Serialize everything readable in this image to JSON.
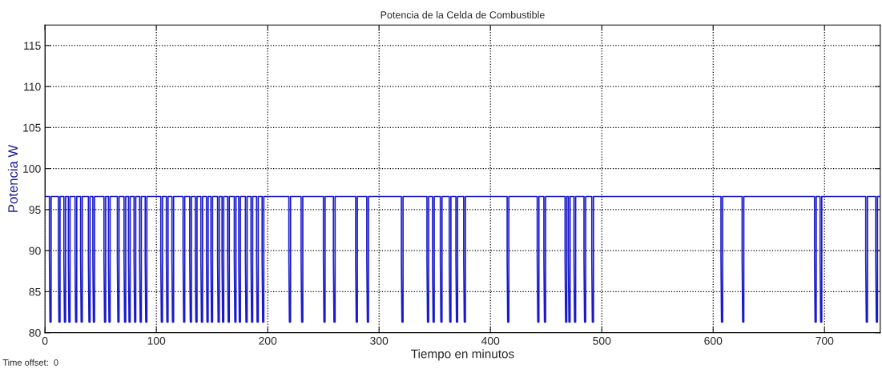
{
  "chart_data": {
    "type": "line",
    "title": "Potencia de la Celda de Combustible",
    "xlabel": "Tiempo en minutos",
    "ylabel": "Potencia W",
    "annotations": [
      "Time offset:  0"
    ],
    "xlim": [
      0,
      750
    ],
    "ylim": [
      80,
      117.5
    ],
    "xticks": [
      0,
      100,
      200,
      300,
      400,
      500,
      600,
      700
    ],
    "yticks": [
      80,
      85,
      90,
      95,
      100,
      105,
      110,
      115
    ],
    "grid": true,
    "marker": "none",
    "line_style": "solid",
    "series": [
      {
        "color": "#1a1acc",
        "x": [
          0,
          0,
          4,
          4,
          4.5,
          5.5,
          5.5,
          12,
          12,
          12.5,
          13.5,
          13.5,
          17,
          17,
          17.5,
          18.5,
          18.5,
          21,
          21,
          21.5,
          22.5,
          22.5,
          27,
          27,
          27.5,
          28.5,
          28.5,
          32,
          32,
          32.5,
          33.5,
          33.5,
          39,
          39,
          39.5,
          40.5,
          40.5,
          43,
          43,
          43.5,
          44.5,
          44.5,
          53,
          53,
          53.5,
          54.5,
          54.5,
          57,
          57,
          57.5,
          58.5,
          58.5,
          65,
          65,
          65.5,
          66.5,
          66.5,
          71,
          71,
          71.5,
          72.5,
          72.5,
          75,
          75,
          75.5,
          76.5,
          76.5,
          80,
          80,
          80.5,
          81.5,
          81.5,
          85,
          85,
          85.5,
          86.5,
          86.5,
          90,
          90,
          90.5,
          91.5,
          91.5,
          104,
          104,
          104.5,
          105.5,
          105.5,
          109,
          109,
          109.5,
          110.5,
          110.5,
          114,
          114,
          114.5,
          115.5,
          115.5,
          124,
          124,
          124.5,
          125.5,
          125.5,
          130,
          130,
          130.5,
          131.5,
          131.5,
          135,
          135,
          135.5,
          136.5,
          136.5,
          140,
          140,
          140.5,
          141.5,
          141.5,
          145,
          145,
          145.5,
          146.5,
          146.5,
          149,
          149,
          149.5,
          150.5,
          150.5,
          155,
          155,
          155.5,
          156.5,
          156.5,
          159,
          159,
          159.5,
          160.5,
          160.5,
          164,
          164,
          164.5,
          165.5,
          165.5,
          170,
          170,
          170.5,
          171.5,
          171.5,
          174,
          174,
          174.5,
          175.5,
          175.5,
          180,
          180,
          180.5,
          181.5,
          181.5,
          185,
          185,
          185.5,
          186.5,
          186.5,
          190,
          190,
          190.5,
          191.5,
          191.5,
          195,
          195,
          195.5,
          196.5,
          196.5,
          219,
          219,
          219.5,
          220.5,
          220.5,
          230,
          230,
          230.5,
          231.5,
          231.5,
          250,
          250,
          250.5,
          251.5,
          251.5,
          259,
          259,
          259.5,
          260.5,
          260.5,
          279,
          279,
          279.5,
          280.5,
          280.5,
          289,
          289,
          289.5,
          290.5,
          290.5,
          320,
          320,
          320.5,
          321.5,
          321.5,
          343,
          343,
          343.5,
          344.5,
          344.5,
          348,
          348,
          348.5,
          349.5,
          349.5,
          355,
          355,
          355.5,
          356.5,
          356.5,
          363,
          363,
          363.5,
          364.5,
          364.5,
          369,
          369,
          369.5,
          370.5,
          370.5,
          376,
          376,
          376.5,
          377.5,
          377.5,
          415,
          415,
          415.5,
          416.5,
          416.5,
          442,
          442,
          442.5,
          443.5,
          443.5,
          448,
          448,
          448.5,
          449.5,
          449.5,
          467,
          467,
          467.5,
          468.5,
          468.5,
          470,
          470,
          470.5,
          471.5,
          471.5,
          475,
          475,
          475.5,
          476.5,
          476.5,
          484,
          484,
          484.5,
          485.5,
          485.5,
          491,
          491,
          491.5,
          492.5,
          492.5,
          607,
          607,
          607.5,
          608.5,
          608.5,
          626,
          626,
          626.5,
          627.5,
          627.5,
          691,
          691,
          691.5,
          692.5,
          692.5,
          696,
          696,
          696.5,
          697.5,
          697.5,
          737,
          737,
          737.5,
          738.5,
          738.5,
          746,
          746,
          746.5,
          747.5,
          747.5,
          750
        ],
        "values": [
          117.5,
          96.6,
          96.6,
          89,
          81.3,
          81.3,
          96.6,
          96.6,
          89,
          81.3,
          81.3,
          96.6,
          96.6,
          89,
          81.3,
          81.3,
          96.6,
          96.6,
          89,
          81.3,
          81.3,
          96.6,
          96.6,
          89,
          81.3,
          81.3,
          96.6,
          96.6,
          89,
          81.3,
          81.3,
          96.6,
          96.6,
          89,
          81.3,
          81.3,
          96.6,
          96.6,
          89,
          81.3,
          81.3,
          96.6,
          96.6,
          89,
          81.3,
          81.3,
          96.6,
          96.6,
          89,
          81.3,
          81.3,
          96.6,
          96.6,
          89,
          81.3,
          81.3,
          96.6,
          96.6,
          89,
          81.3,
          81.3,
          96.6,
          96.6,
          89,
          81.3,
          81.3,
          96.6,
          96.6,
          89,
          81.3,
          81.3,
          96.6,
          96.6,
          89,
          81.3,
          81.3,
          96.6,
          96.6,
          89,
          81.3,
          81.3,
          96.6,
          96.6,
          89,
          81.3,
          81.3,
          96.6,
          96.6,
          89,
          81.3,
          81.3,
          96.6,
          96.6,
          89,
          81.3,
          81.3,
          96.6,
          96.6,
          89,
          81.3,
          81.3,
          96.6,
          96.6,
          89,
          81.3,
          81.3,
          96.6,
          96.6,
          89,
          81.3,
          81.3,
          96.6,
          96.6,
          89,
          81.3,
          81.3,
          96.6,
          96.6,
          89,
          81.3,
          81.3,
          96.6,
          96.6,
          89,
          81.3,
          81.3,
          96.6,
          96.6,
          89,
          81.3,
          81.3,
          96.6,
          96.6,
          89,
          81.3,
          81.3,
          96.6,
          96.6,
          89,
          81.3,
          81.3,
          96.6,
          96.6,
          89,
          81.3,
          81.3,
          96.6,
          96.6,
          89,
          81.3,
          81.3,
          96.6,
          96.6,
          89,
          81.3,
          81.3,
          96.6,
          96.6,
          89,
          81.3,
          81.3,
          96.6,
          96.6,
          89,
          81.3,
          81.3,
          96.6,
          96.6,
          89,
          81.3,
          81.3,
          96.6,
          96.6,
          89,
          81.3,
          81.3,
          96.6,
          96.6,
          89,
          81.3,
          81.3,
          96.6,
          96.6,
          89,
          81.3,
          81.3,
          96.6,
          96.6,
          89,
          81.3,
          81.3,
          96.6,
          96.6,
          89,
          81.3,
          81.3,
          96.6,
          96.6,
          89,
          81.3,
          81.3,
          96.6,
          96.6,
          89,
          81.3,
          81.3,
          96.6,
          96.6,
          89,
          81.3,
          81.3,
          96.6,
          96.6,
          89,
          81.3,
          81.3,
          96.6,
          96.6,
          89,
          81.3,
          81.3,
          96.6,
          96.6,
          89,
          81.3,
          81.3,
          96.6,
          96.6,
          89,
          81.3,
          81.3,
          96.6,
          96.6,
          89,
          81.3,
          81.3,
          96.6,
          96.6,
          89,
          81.3,
          81.3,
          96.6,
          96.6,
          89,
          81.3,
          81.3,
          96.6,
          96.6,
          89,
          81.3,
          81.3,
          96.6,
          96.6,
          89,
          81.3,
          81.3,
          96.6,
          96.6,
          89,
          81.3,
          81.3,
          96.6,
          96.6,
          89,
          81.3,
          81.3,
          96.6,
          96.6,
          89,
          81.3,
          81.3,
          96.6,
          96.6,
          89,
          81.3,
          81.3,
          96.6,
          96.6,
          89,
          81.3,
          81.3,
          96.6,
          96.6,
          89,
          81.3,
          81.3,
          96.6,
          96.6,
          89,
          81.3,
          81.3,
          96.6,
          96.6,
          89,
          81.3,
          81.3,
          96.6,
          96.6,
          89,
          81.3,
          81.3,
          96.6,
          96.6,
          89,
          81.3,
          81.3,
          96.6,
          96.6
        ]
      }
    ]
  }
}
